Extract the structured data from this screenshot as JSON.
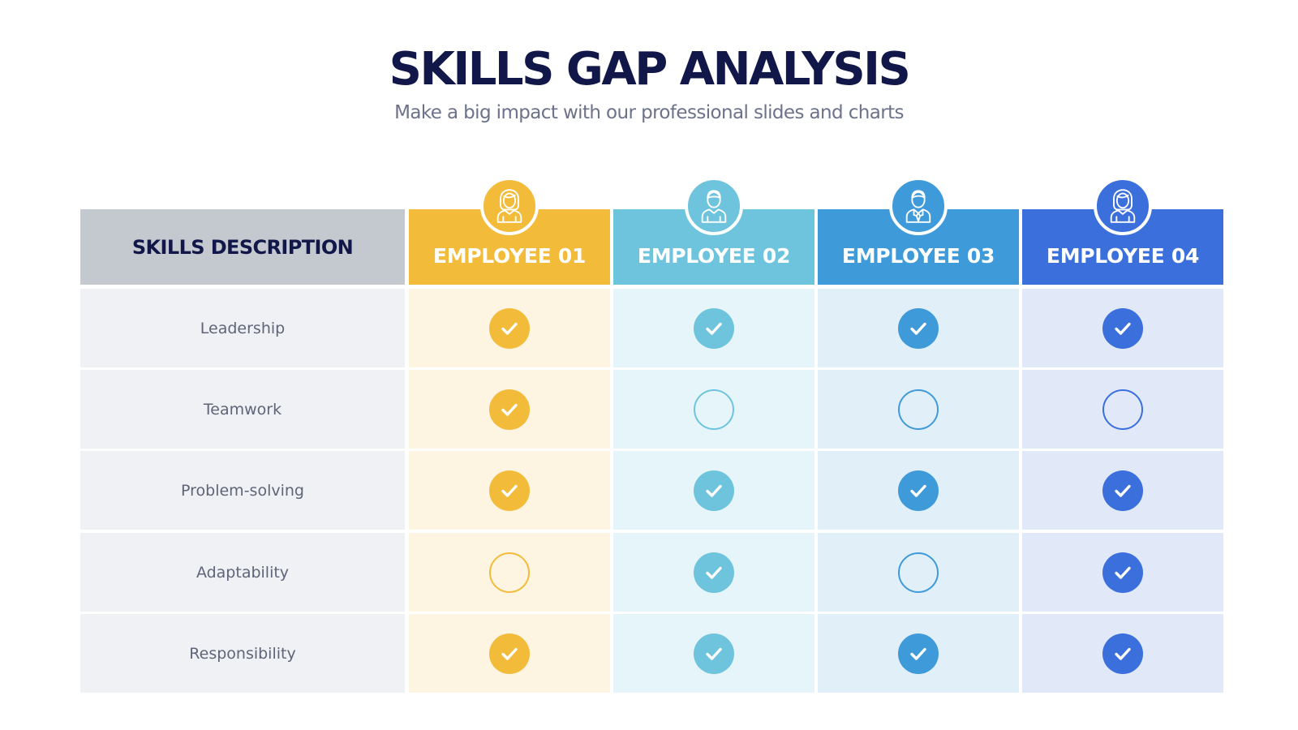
{
  "header": {
    "title": "SKILLS GAP ANALYSIS",
    "subtitle": "Make a big impact with our professional slides and charts"
  },
  "table": {
    "description_header": "SKILLS DESCRIPTION",
    "employees": [
      {
        "label": "EMPLOYEE 01",
        "color": "#f2bb3a",
        "tint": "#fdf4e2",
        "icon": "female-user-icon"
      },
      {
        "label": "EMPLOYEE 02",
        "color": "#6fc4dd",
        "tint": "#e6f5fa",
        "icon": "male-user-icon"
      },
      {
        "label": "EMPLOYEE 03",
        "color": "#3f9ad9",
        "tint": "#e1eff9",
        "icon": "male-user-tie-icon"
      },
      {
        "label": "EMPLOYEE 04",
        "color": "#3b6fdc",
        "tint": "#e1e9f9",
        "icon": "female-user-icon"
      }
    ],
    "skills": [
      {
        "name": "Leadership",
        "marks": [
          true,
          true,
          true,
          true
        ]
      },
      {
        "name": "Teamwork",
        "marks": [
          true,
          false,
          false,
          false
        ]
      },
      {
        "name": "Problem-solving",
        "marks": [
          true,
          true,
          true,
          true
        ]
      },
      {
        "name": "Adaptability",
        "marks": [
          false,
          true,
          false,
          true
        ]
      },
      {
        "name": "Responsibility",
        "marks": [
          true,
          true,
          true,
          true
        ]
      }
    ]
  }
}
